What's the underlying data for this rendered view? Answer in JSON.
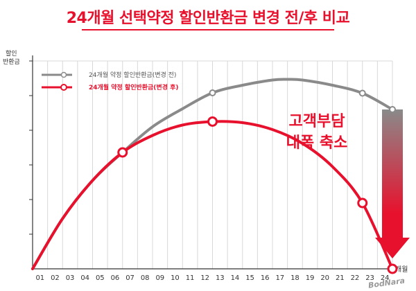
{
  "page": {
    "title": "24개월 선택약정 할인반환금 변경 전/후 비교"
  },
  "chart_data": {
    "type": "line",
    "title": "24개월 선택약정 할인반환금 변경 전/후 비교",
    "ylabel_lines": [
      "할인",
      "반환금"
    ],
    "xlabel": "개월",
    "categories": [
      "01",
      "02",
      "03",
      "04",
      "05",
      "06",
      "07",
      "08",
      "09",
      "10",
      "11",
      "12",
      "13",
      "14",
      "15",
      "16",
      "17",
      "18",
      "19",
      "20",
      "21",
      "22",
      "23",
      "24"
    ],
    "x_range": [
      0,
      24
    ],
    "y_range": [
      0,
      6
    ],
    "y_ticks": [
      1,
      2,
      3,
      4,
      5,
      6
    ],
    "grid": "vertical",
    "legend_position": "top-left",
    "series": [
      {
        "name": "24개월 약정 할인반환금(변경 전)",
        "color": "#8a8a8a",
        "points": [
          [
            0,
            0
          ],
          [
            2,
            1.45
          ],
          [
            4,
            2.55
          ],
          [
            6,
            3.36
          ],
          [
            8,
            4.1
          ],
          [
            10,
            4.62
          ],
          [
            12,
            5.08
          ],
          [
            14,
            5.3
          ],
          [
            16,
            5.45
          ],
          [
            17,
            5.47
          ],
          [
            18,
            5.45
          ],
          [
            20,
            5.3
          ],
          [
            22,
            5.07
          ],
          [
            24,
            4.6
          ]
        ],
        "markers": [
          [
            12,
            5.08
          ],
          [
            22,
            5.07
          ],
          [
            24,
            4.6
          ]
        ]
      },
      {
        "name": "24개월 약정 할인반환금(변경 후)",
        "color": "#e8112d",
        "points": [
          [
            0,
            0
          ],
          [
            2,
            1.45
          ],
          [
            4,
            2.55
          ],
          [
            6,
            3.36
          ],
          [
            8,
            3.85
          ],
          [
            10,
            4.15
          ],
          [
            12,
            4.25
          ],
          [
            14,
            4.22
          ],
          [
            16,
            4.02
          ],
          [
            18,
            3.62
          ],
          [
            20,
            2.95
          ],
          [
            22,
            1.9
          ],
          [
            24,
            0
          ]
        ],
        "markers": [
          [
            6,
            3.36
          ],
          [
            12,
            4.25
          ],
          [
            22,
            1.9
          ],
          [
            24,
            0
          ]
        ]
      }
    ],
    "annotation": {
      "lines": [
        "고객부담",
        "대폭 축소"
      ],
      "arrow_from": [
        24,
        4.6
      ],
      "arrow_to": [
        24,
        0.3
      ],
      "arrow_color_top": "#8a8a8a",
      "arrow_color_bottom": "#e8112d"
    },
    "watermark": "BodNara"
  }
}
